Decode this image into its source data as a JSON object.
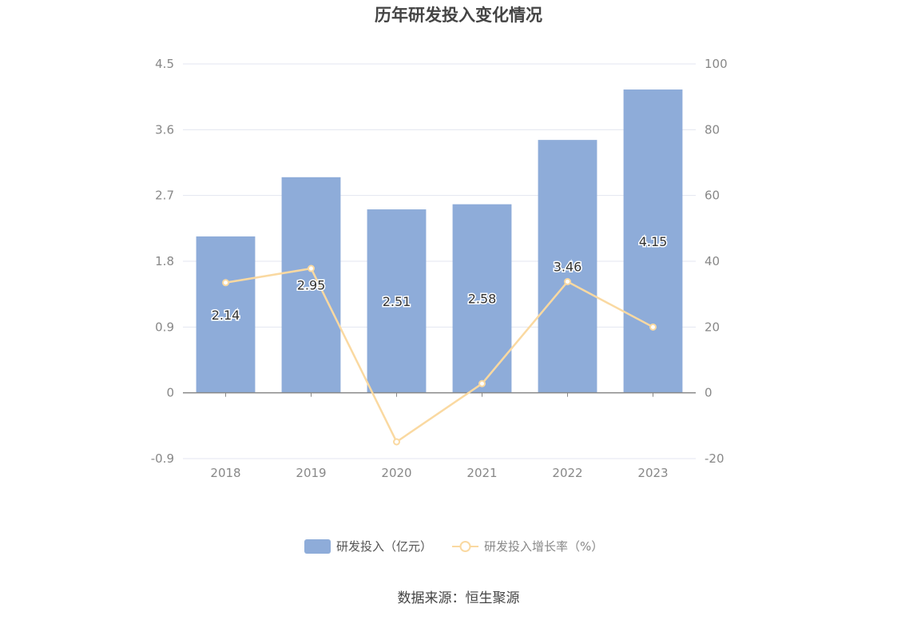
{
  "chart_data": {
    "type": "bar",
    "title": "历年研发投入变化情况",
    "categories": [
      "2018",
      "2019",
      "2020",
      "2021",
      "2022",
      "2023"
    ],
    "series": [
      {
        "name": "研发投入（亿元）",
        "type": "bar",
        "axis": "left",
        "values": [
          2.14,
          2.95,
          2.51,
          2.58,
          3.46,
          4.15
        ],
        "color": "#8eacd9"
      },
      {
        "name": "研发投入增长率（%）",
        "type": "line",
        "axis": "right",
        "values": [
          33.5,
          37.8,
          -14.9,
          2.8,
          33.8,
          20.0
        ],
        "color": "#fad9a1"
      }
    ],
    "y_left": {
      "ticks": [
        "4.5",
        "3.6",
        "2.7",
        "1.8",
        "0.9",
        "0",
        "-0.9"
      ],
      "range": [
        -0.9,
        4.5
      ]
    },
    "y_right": {
      "ticks": [
        "100",
        "80",
        "60",
        "40",
        "20",
        "0",
        "-20"
      ],
      "range": [
        -20,
        100
      ]
    },
    "grid": true,
    "legend_position": "bottom"
  },
  "source": "数据来源：恒生聚源"
}
